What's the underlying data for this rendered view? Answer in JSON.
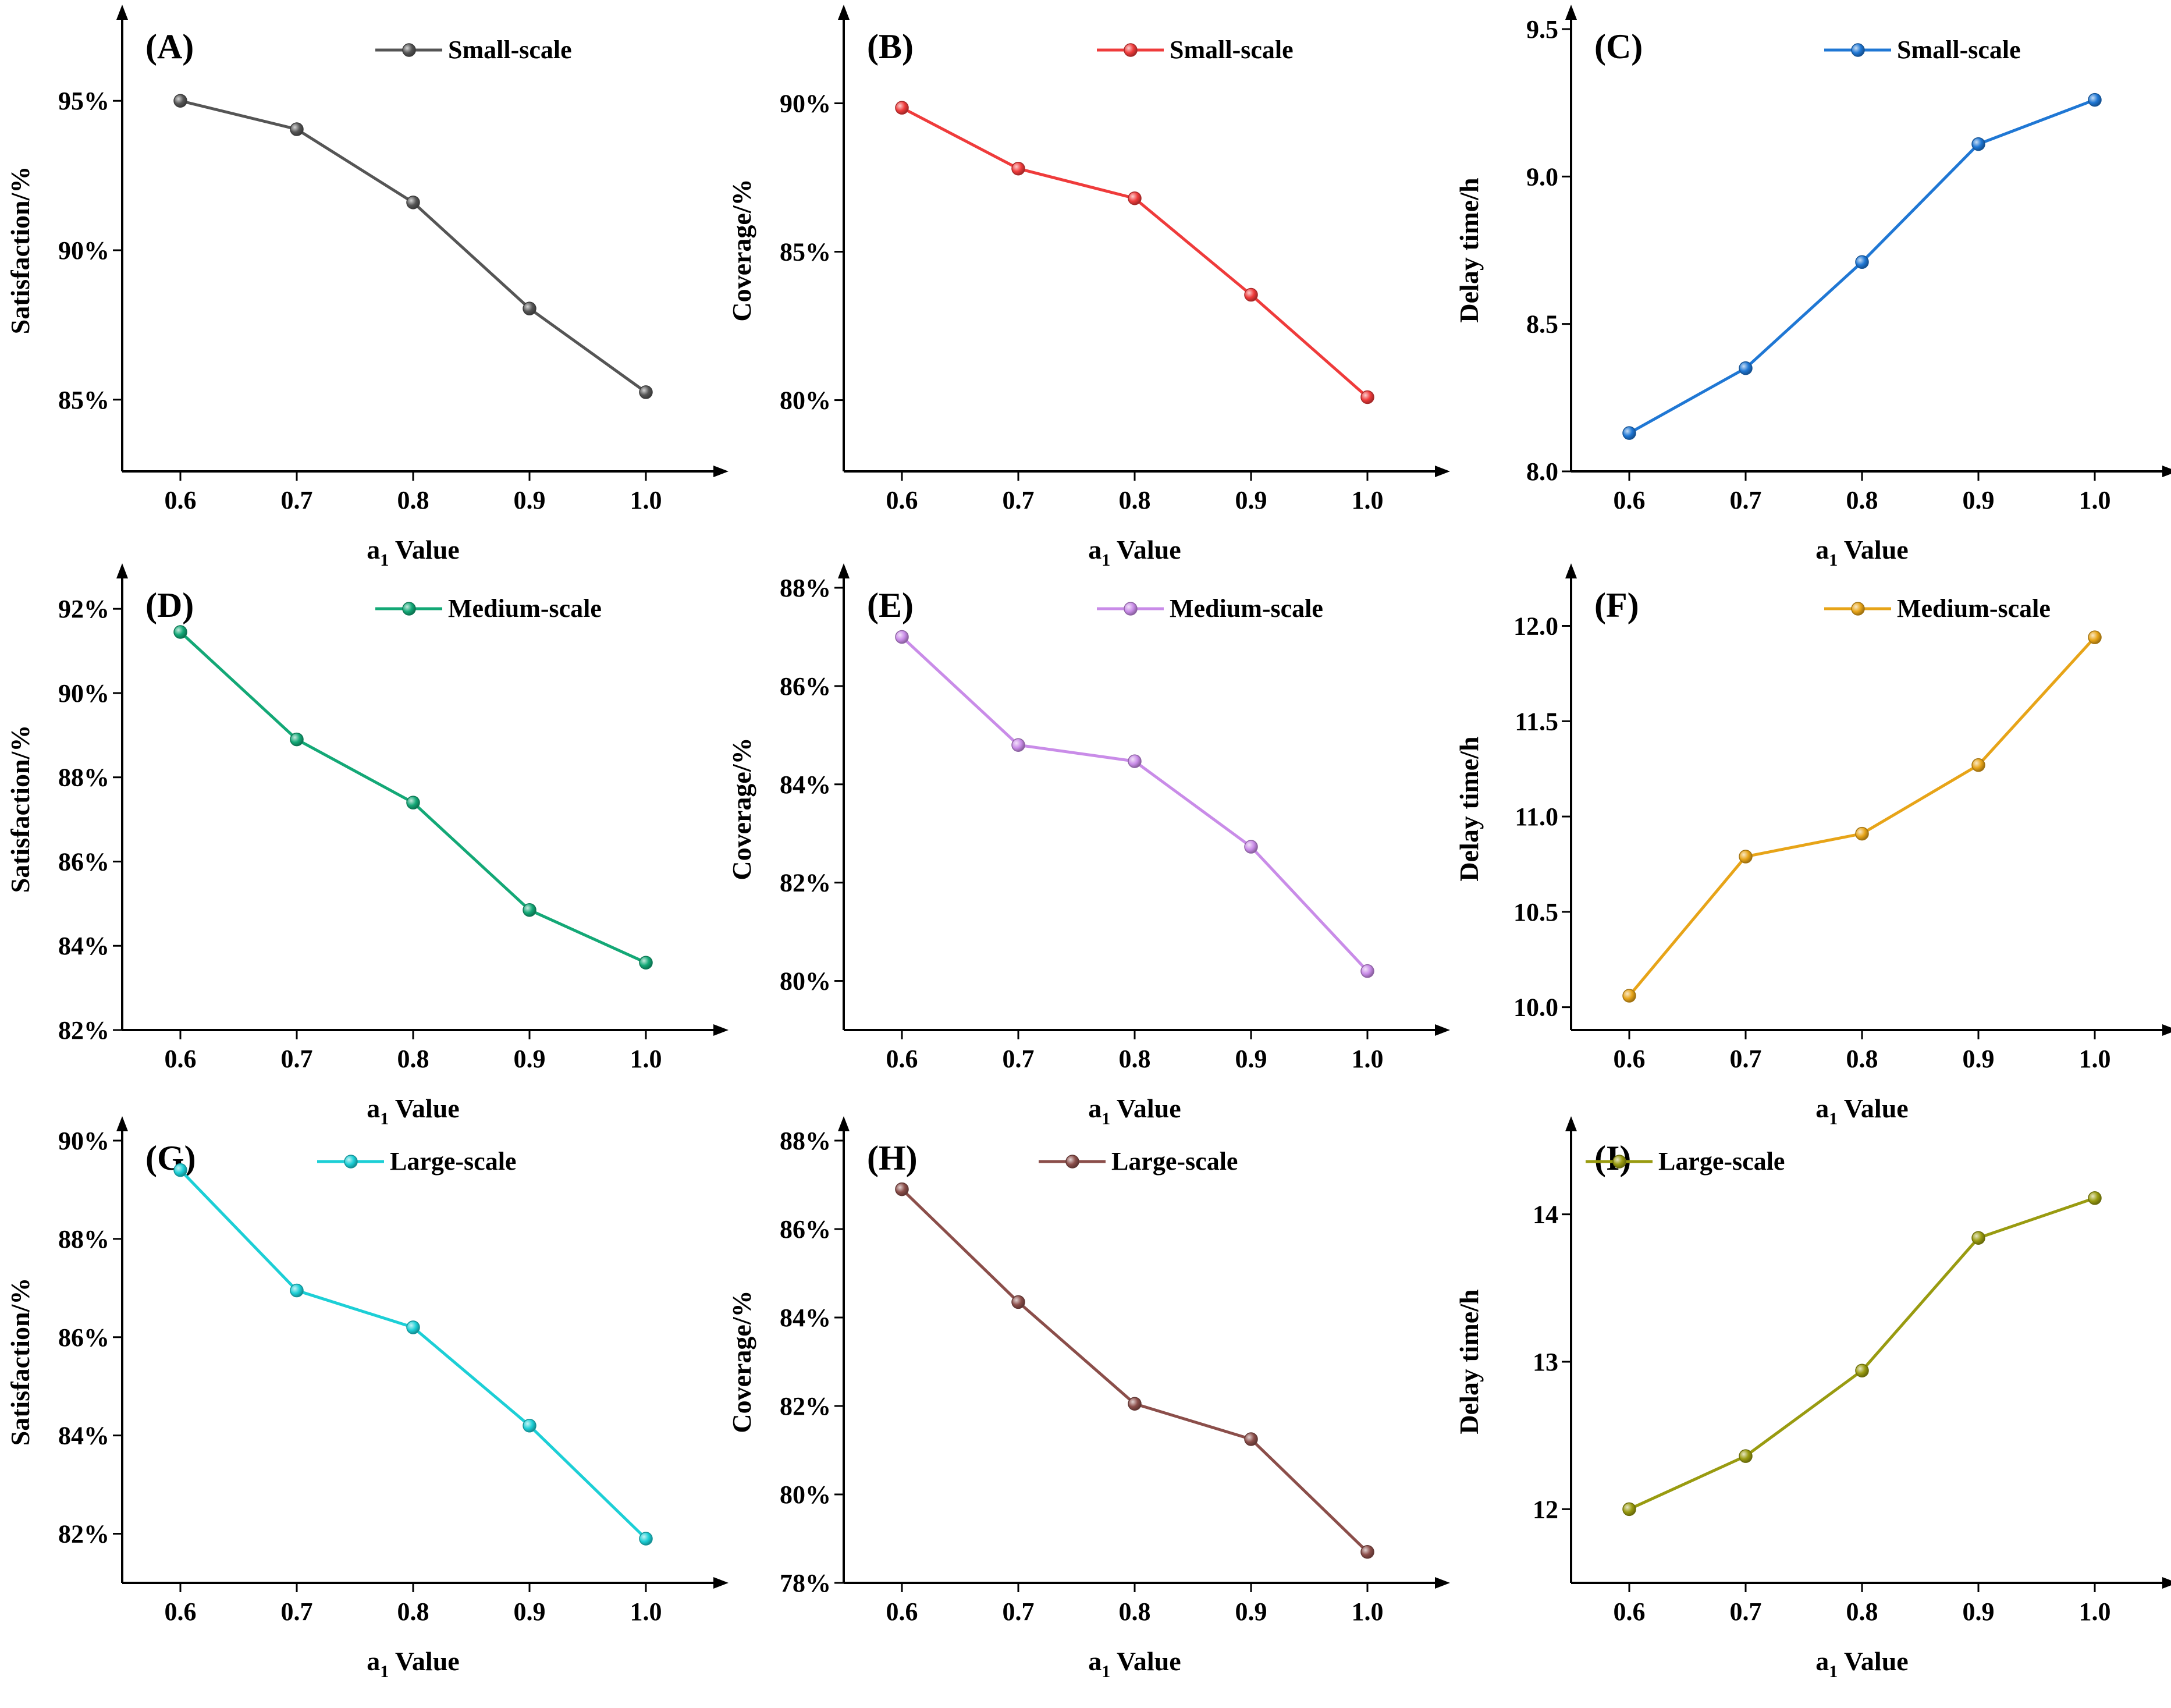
{
  "figure": {
    "x_title_main": "a",
    "x_title_sub": "1",
    "x_title_rest": " Value"
  },
  "chart_data": [
    {
      "label": "(A)",
      "type": "line",
      "series_name": "Small-scale",
      "color": "#555555",
      "ylabel": "Satisfaction/%",
      "x": [
        0.6,
        0.7,
        0.8,
        0.9,
        1.0
      ],
      "xtick_labels": [
        "0.6",
        "0.7",
        "0.8",
        "0.9",
        "1.0"
      ],
      "xlim": [
        0.55,
        1.05
      ],
      "y": [
        95.0,
        94.05,
        91.6,
        88.05,
        85.25
      ],
      "ylim": [
        82.6,
        97.4
      ],
      "yticks": [
        85,
        90,
        95
      ],
      "ytick_labels": [
        "85%",
        "90%",
        "95%"
      ],
      "legend_pos": "top-right"
    },
    {
      "label": "(B)",
      "type": "line",
      "series_name": "Small-scale",
      "color": "#ef3b3b",
      "ylabel": "Coverage/%",
      "x": [
        0.6,
        0.7,
        0.8,
        0.9,
        1.0
      ],
      "xtick_labels": [
        "0.6",
        "0.7",
        "0.8",
        "0.9",
        "1.0"
      ],
      "xlim": [
        0.55,
        1.05
      ],
      "y": [
        89.85,
        87.8,
        86.8,
        83.55,
        80.1
      ],
      "ylim": [
        77.6,
        92.5
      ],
      "yticks": [
        80,
        85,
        90
      ],
      "ytick_labels": [
        "80%",
        "85%",
        "90%"
      ],
      "legend_pos": "top-right"
    },
    {
      "label": "(C)",
      "type": "line",
      "series_name": "Small-scale",
      "color": "#1f77d4",
      "ylabel": "Delay time/h",
      "x": [
        0.6,
        0.7,
        0.8,
        0.9,
        1.0
      ],
      "xtick_labels": [
        "0.6",
        "0.7",
        "0.8",
        "0.9",
        "1.0"
      ],
      "xlim": [
        0.55,
        1.05
      ],
      "y": [
        8.13,
        8.35,
        8.71,
        9.11,
        9.26
      ],
      "ylim": [
        8.0,
        9.5
      ],
      "yticks": [
        8.0,
        8.5,
        9.0,
        9.5
      ],
      "ytick_labels": [
        "8.0",
        "8.5",
        "9.0",
        "9.5"
      ],
      "legend_pos": "top-right"
    },
    {
      "label": "(D)",
      "type": "line",
      "series_name": "Medium-scale",
      "color": "#13a876",
      "ylabel": "Satisfaction/%",
      "x": [
        0.6,
        0.7,
        0.8,
        0.9,
        1.0
      ],
      "xtick_labels": [
        "0.6",
        "0.7",
        "0.8",
        "0.9",
        "1.0"
      ],
      "xlim": [
        0.55,
        1.05
      ],
      "y": [
        91.45,
        88.9,
        87.4,
        84.85,
        83.6
      ],
      "ylim": [
        82,
        92.5
      ],
      "yticks": [
        82,
        84,
        86,
        88,
        90,
        92
      ],
      "ytick_labels": [
        "82%",
        "84%",
        "86%",
        "88%",
        "90%",
        "92%"
      ],
      "legend_pos": "top-right"
    },
    {
      "label": "(E)",
      "type": "line",
      "series_name": "Medium-scale",
      "color": "#c98ce8",
      "ylabel": "Coverage/%",
      "x": [
        0.6,
        0.7,
        0.8,
        0.9,
        1.0
      ],
      "xtick_labels": [
        "0.6",
        "0.7",
        "0.8",
        "0.9",
        "1.0"
      ],
      "xlim": [
        0.55,
        1.05
      ],
      "y": [
        87.0,
        84.8,
        84.47,
        82.73,
        80.2
      ],
      "ylim": [
        79,
        88
      ],
      "yticks": [
        80,
        82,
        84,
        86,
        88
      ],
      "ytick_labels": [
        "80%",
        "82%",
        "84%",
        "86%",
        "88%"
      ],
      "legend_pos": "top-right"
    },
    {
      "label": "(F)",
      "type": "line",
      "series_name": "Medium-scale",
      "color": "#e7a418",
      "ylabel": "Delay time/h",
      "x": [
        0.6,
        0.7,
        0.8,
        0.9,
        1.0
      ],
      "xtick_labels": [
        "0.6",
        "0.7",
        "0.8",
        "0.9",
        "1.0"
      ],
      "xlim": [
        0.55,
        1.05
      ],
      "y": [
        10.06,
        10.79,
        10.91,
        11.27,
        11.94
      ],
      "ylim": [
        9.88,
        12.2
      ],
      "yticks": [
        10.0,
        10.5,
        11.0,
        11.5,
        12.0
      ],
      "ytick_labels": [
        "10.0",
        "10.5",
        "11.0",
        "11.5",
        "12.0"
      ],
      "legend_pos": "top-right"
    },
    {
      "label": "(G)",
      "type": "line",
      "series_name": "Large-scale",
      "color": "#1ccfd6",
      "ylabel": "Satisfaction/%",
      "x": [
        0.6,
        0.7,
        0.8,
        0.9,
        1.0
      ],
      "xtick_labels": [
        "0.6",
        "0.7",
        "0.8",
        "0.9",
        "1.0"
      ],
      "xlim": [
        0.55,
        1.05
      ],
      "y": [
        89.4,
        86.95,
        86.2,
        84.2,
        81.9
      ],
      "ylim": [
        81,
        90
      ],
      "yticks": [
        82,
        84,
        86,
        88,
        90
      ],
      "ytick_labels": [
        "82%",
        "84%",
        "86%",
        "88%",
        "90%"
      ],
      "legend_pos": "top-center"
    },
    {
      "label": "(H)",
      "type": "line",
      "series_name": "Large-scale",
      "color": "#8b4e4a",
      "ylabel": "Coverage/%",
      "x": [
        0.6,
        0.7,
        0.8,
        0.9,
        1.0
      ],
      "xtick_labels": [
        "0.6",
        "0.7",
        "0.8",
        "0.9",
        "1.0"
      ],
      "xlim": [
        0.55,
        1.05
      ],
      "y": [
        86.9,
        84.35,
        82.05,
        81.25,
        78.7
      ],
      "ylim": [
        78,
        88
      ],
      "yticks": [
        78,
        80,
        82,
        84,
        86,
        88
      ],
      "ytick_labels": [
        "78%",
        "80%",
        "82%",
        "84%",
        "86%",
        "88%"
      ],
      "legend_pos": "top-center"
    },
    {
      "label": "(I)",
      "type": "line",
      "series_name": "Large-scale",
      "color": "#999b10",
      "ylabel": "Delay time/h",
      "x": [
        0.6,
        0.7,
        0.8,
        0.9,
        1.0
      ],
      "xtick_labels": [
        "0.6",
        "0.7",
        "0.8",
        "0.9",
        "1.0"
      ],
      "xlim": [
        0.55,
        1.05
      ],
      "y": [
        12.0,
        12.36,
        12.94,
        13.84,
        14.11
      ],
      "ylim": [
        11.5,
        14.5
      ],
      "yticks": [
        12,
        13,
        14
      ],
      "ytick_labels": [
        "12",
        "13",
        "14"
      ],
      "legend_pos": "top-left"
    }
  ]
}
